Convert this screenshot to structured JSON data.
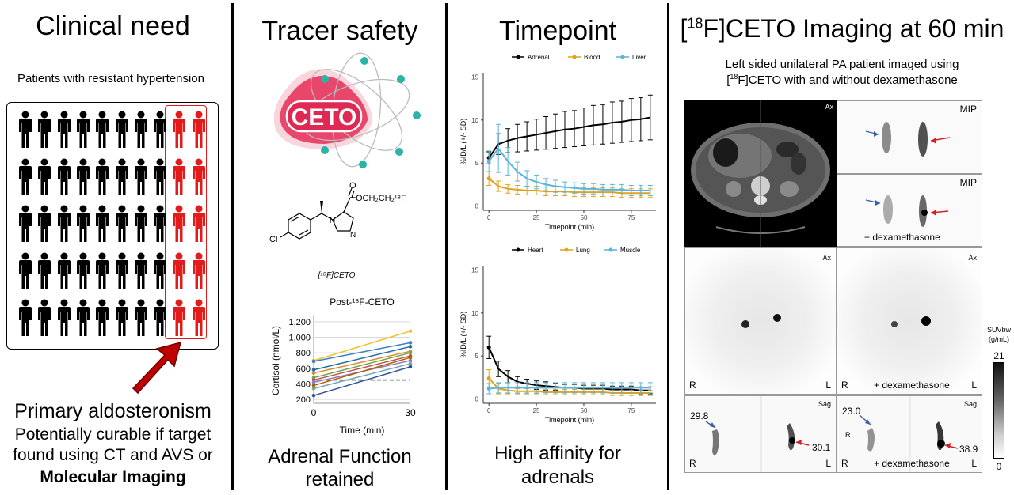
{
  "sections": {
    "clinical": {
      "title": "Clinical need",
      "subtitle": "Patients with resistant hypertension",
      "line1": "Primary aldosteronism",
      "line2": "Potentially curable if target",
      "line3": "found using CT and AVS or",
      "line4": "Molecular Imaging",
      "black_person_color": "#000000",
      "red_person_color": "#e41b1b",
      "arrow_color": "#c00000"
    },
    "safety": {
      "title": "Tracer safety",
      "logo_text": "CETO",
      "chem_substituent": "OCH₂CH₂¹⁸F",
      "chem_o": "O",
      "chem_cl": "Cl",
      "chem_n1": "N",
      "chem_n2": "N",
      "tracer_label": "[¹⁸F]CETO",
      "caption1": "Adrenal Function",
      "caption2": "retained"
    },
    "timepoint": {
      "title": "Timepoint",
      "caption1": "High affinity for",
      "caption2": "adrenals"
    },
    "imaging": {
      "title_sup": "18",
      "title_main": "F]CETO Imaging at 60 min",
      "title_prefix": "[",
      "desc1": "Left sided unilateral PA patient imaged using",
      "desc2_prefix": "[",
      "desc2_sup": "18",
      "desc2_main": "F]CETO with and without dexamethasone",
      "labels": {
        "ax": "Ax",
        "mip": "MIP",
        "sag": "Sag",
        "dexa": "+ dexamethasone",
        "r": "R",
        "l": "L"
      },
      "values": {
        "left_top": "29.8",
        "left_right": "30.1",
        "right_top": "23.0",
        "right_right": "38.9"
      },
      "colorbar": {
        "title1": "SUVbw",
        "title2": "(g/mL)",
        "max": "21",
        "min": "0"
      }
    }
  },
  "chart_data": [
    {
      "type": "line",
      "title": "Post-¹⁸F-CETO",
      "xlabel": "Time (min)",
      "ylabel": "Cortisol (nmol/L)",
      "x": [
        0,
        30
      ],
      "xticks": [
        "0",
        "30"
      ],
      "yticks": [
        "200",
        "400",
        "600",
        "800",
        "1,000",
        "1,200"
      ],
      "ylim": [
        150,
        1250
      ],
      "threshold": 450,
      "series": [
        {
          "values": [
            700,
            1080
          ],
          "color": "#f2c12e"
        },
        {
          "values": [
            690,
            930
          ],
          "color": "#3b7fc4"
        },
        {
          "values": [
            580,
            880
          ],
          "color": "#1f6fa8"
        },
        {
          "values": [
            540,
            820
          ],
          "color": "#e08a2c"
        },
        {
          "values": [
            480,
            800
          ],
          "color": "#6aa84f"
        },
        {
          "values": [
            450,
            760
          ],
          "color": "#c0504d"
        },
        {
          "values": [
            420,
            700
          ],
          "color": "#8e7cc3"
        },
        {
          "values": [
            380,
            740
          ],
          "color": "#b45f06"
        },
        {
          "values": [
            340,
            660
          ],
          "color": "#76a5af"
        },
        {
          "values": [
            250,
            620
          ],
          "color": "#2f5597"
        }
      ]
    },
    {
      "type": "line",
      "xlabel": "Timepoint (min)",
      "ylabel": "%ID/L (+/- SD)",
      "xticks": [
        0,
        25,
        50,
        75
      ],
      "yticks": [
        0,
        5,
        10,
        15
      ],
      "xlim": [
        -3,
        88
      ],
      "ylim": [
        -0.5,
        15.5
      ],
      "legend": "top",
      "x": [
        0,
        5,
        10,
        15,
        20,
        25,
        30,
        35,
        40,
        45,
        50,
        55,
        60,
        65,
        70,
        75,
        80,
        85
      ],
      "series": [
        {
          "name": "Adrenal",
          "color": "#000000",
          "values": [
            5.6,
            7.2,
            7.6,
            7.9,
            8.1,
            8.3,
            8.5,
            8.7,
            8.9,
            9.0,
            9.2,
            9.4,
            9.5,
            9.7,
            9.8,
            10.0,
            10.1,
            10.3
          ],
          "sd": [
            0.7,
            1.2,
            1.4,
            1.6,
            1.7,
            1.8,
            1.9,
            2.0,
            2.1,
            2.1,
            2.2,
            2.3,
            2.3,
            2.4,
            2.4,
            2.5,
            2.5,
            2.6
          ]
        },
        {
          "name": "Blood",
          "color": "#e0a11c",
          "values": [
            3.2,
            2.3,
            2.0,
            1.9,
            1.8,
            1.8,
            1.7,
            1.7,
            1.7,
            1.6,
            1.6,
            1.6,
            1.6,
            1.6,
            1.5,
            1.5,
            1.5,
            1.5
          ],
          "sd": [
            0.8,
            0.6,
            0.5,
            0.5,
            0.5,
            0.5,
            0.5,
            0.5,
            0.5,
            0.5,
            0.5,
            0.5,
            0.5,
            0.5,
            0.5,
            0.5,
            0.5,
            0.5
          ]
        },
        {
          "name": "Liver",
          "color": "#5ab4dc",
          "values": [
            5.2,
            6.7,
            5.2,
            4.0,
            3.2,
            2.8,
            2.5,
            2.3,
            2.2,
            2.1,
            2.0,
            2.0,
            1.9,
            1.9,
            1.9,
            1.8,
            1.8,
            1.8
          ],
          "sd": [
            1.2,
            2.8,
            1.6,
            1.1,
            0.9,
            0.8,
            0.7,
            0.7,
            0.6,
            0.6,
            0.6,
            0.6,
            0.6,
            0.6,
            0.6,
            0.6,
            0.6,
            0.6
          ]
        }
      ]
    },
    {
      "type": "line",
      "xlabel": "Timepoint (min)",
      "ylabel": "%ID/L (+/- SD)",
      "xticks": [
        0,
        25,
        50,
        75
      ],
      "yticks": [
        0,
        5,
        10,
        15
      ],
      "xlim": [
        -3,
        88
      ],
      "ylim": [
        -0.5,
        15.5
      ],
      "legend": "top",
      "x": [
        0,
        5,
        10,
        15,
        20,
        25,
        30,
        35,
        40,
        45,
        50,
        55,
        60,
        65,
        70,
        75,
        80,
        85
      ],
      "series": [
        {
          "name": "Heart",
          "color": "#000000",
          "values": [
            6.0,
            3.5,
            2.6,
            2.0,
            1.8,
            1.6,
            1.5,
            1.4,
            1.3,
            1.3,
            1.2,
            1.2,
            1.2,
            1.1,
            1.1,
            1.1,
            1.0,
            1.0
          ],
          "sd": [
            1.3,
            0.9,
            0.7,
            0.6,
            0.5,
            0.5,
            0.5,
            0.4,
            0.4,
            0.4,
            0.4,
            0.4,
            0.4,
            0.4,
            0.4,
            0.4,
            0.4,
            0.4
          ]
        },
        {
          "name": "Lung",
          "color": "#e0a11c",
          "values": [
            2.4,
            1.2,
            1.0,
            0.9,
            0.9,
            0.9,
            0.8,
            0.8,
            0.8,
            0.8,
            0.8,
            0.8,
            0.8,
            0.7,
            0.7,
            0.7,
            0.7,
            0.7
          ],
          "sd": [
            1.0,
            0.6,
            0.4,
            0.3,
            0.3,
            0.3,
            0.3,
            0.3,
            0.3,
            0.3,
            0.3,
            0.3,
            0.3,
            0.3,
            0.3,
            0.3,
            0.3,
            0.3
          ]
        },
        {
          "name": "Muscle",
          "color": "#5ab4dc",
          "values": [
            1.2,
            1.3,
            1.3,
            1.3,
            1.3,
            1.3,
            1.3,
            1.3,
            1.3,
            1.3,
            1.3,
            1.3,
            1.3,
            1.3,
            1.3,
            1.3,
            1.3,
            1.3
          ],
          "sd": [
            0.6,
            0.6,
            0.6,
            0.6,
            0.6,
            0.6,
            0.6,
            0.6,
            0.6,
            0.6,
            0.6,
            0.6,
            0.6,
            0.6,
            0.6,
            0.6,
            0.6,
            0.6
          ]
        }
      ]
    }
  ]
}
